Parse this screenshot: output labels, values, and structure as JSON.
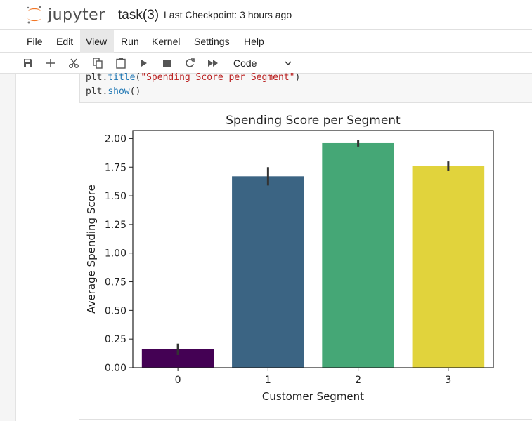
{
  "header": {
    "logo_text": "jupyter",
    "notebook_title": "task(3)",
    "checkpoint": "Last Checkpoint: 3 hours ago"
  },
  "menu": {
    "items": [
      "File",
      "Edit",
      "View",
      "Run",
      "Kernel",
      "Settings",
      "Help"
    ],
    "active": "View"
  },
  "toolbar": {
    "cell_type": "Code",
    "icons": [
      "save-icon",
      "add-cell-icon",
      "cut-icon",
      "copy-icon",
      "paste-icon",
      "run-icon",
      "stop-icon",
      "restart-icon",
      "fast-forward-icon"
    ]
  },
  "code": {
    "line1_fn": "plt.",
    "line1_method": "title",
    "line1_arg": "\"Spending Score per Segment\"",
    "line2_fn": "plt.",
    "line2_method": "show",
    "line2_tail": "()"
  },
  "colors": {
    "bar0": "#440154",
    "bar1": "#3b6483",
    "bar2": "#45a776",
    "bar3": "#e1d33c",
    "errbar": "#333333"
  },
  "chart_data": {
    "type": "bar",
    "title": "Spending Score per Segment",
    "xlabel": "Customer Segment",
    "ylabel": "Average Spending Score",
    "categories": [
      "0",
      "1",
      "2",
      "3"
    ],
    "values": [
      0.16,
      1.67,
      1.96,
      1.76
    ],
    "error_low": [
      0.11,
      1.59,
      1.93,
      1.72
    ],
    "error_high": [
      0.21,
      1.75,
      1.99,
      1.8
    ],
    "ylim": [
      0,
      2.07
    ],
    "yticks": [
      "0.00",
      "0.25",
      "0.50",
      "0.75",
      "1.00",
      "1.25",
      "1.50",
      "1.75",
      "2.00"
    ],
    "grid": false,
    "legend": "none"
  }
}
